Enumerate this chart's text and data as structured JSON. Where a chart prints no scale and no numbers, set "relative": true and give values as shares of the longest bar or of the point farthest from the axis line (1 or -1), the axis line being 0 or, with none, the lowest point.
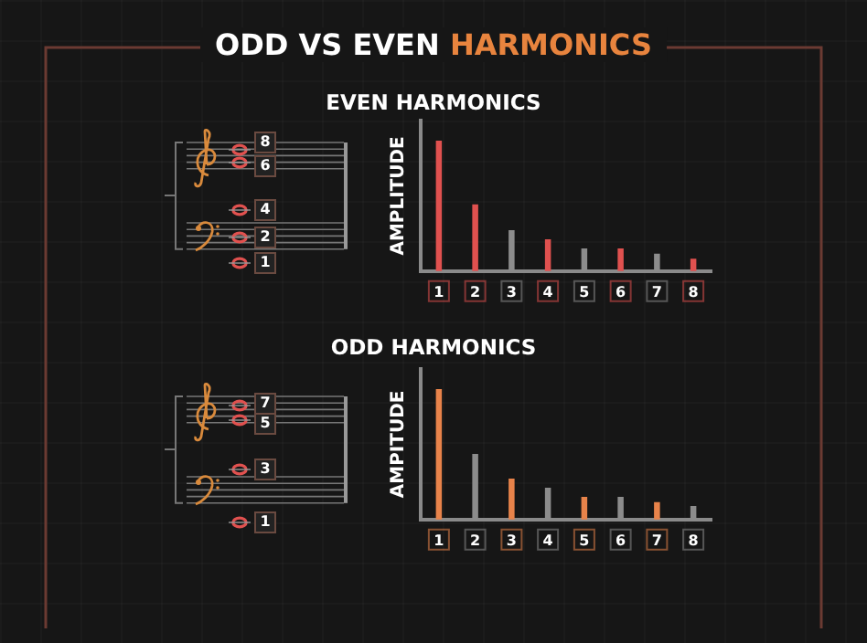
{
  "chart_data": [
    {
      "type": "bar",
      "title": "ODD VS EVEN HARMONICS",
      "subtitle": "EVEN HARMONICS",
      "ylabel": "AMPLITUDE",
      "relative": true,
      "categories": [
        "1",
        "2",
        "3",
        "4",
        "5",
        "6",
        "7",
        "8"
      ],
      "values": [
        1,
        0.51,
        0.31,
        0.24,
        0.17,
        0.17,
        0.13,
        0.09
      ],
      "colors": [
        "#e0514f",
        "#e0514f",
        "#8c8c8c",
        "#e0514f",
        "#8c8c8c",
        "#e0514f",
        "#8c8c8c",
        "#e0514f"
      ],
      "annotations": [
        "8",
        "6",
        "4",
        "2",
        "1"
      ]
    },
    {
      "type": "bar",
      "title": "ODD HARMONICS",
      "ylabel": "AMPITUDE",
      "relative": true,
      "categories": [
        "1",
        "2",
        "3",
        "4",
        "5",
        "6",
        "7",
        "8"
      ],
      "values": [
        1,
        0.5,
        0.31,
        0.24,
        0.17,
        0.17,
        0.13,
        0.1
      ],
      "colors": [
        "#e8834a",
        "#8c8c8c",
        "#e8834a",
        "#8c8c8c",
        "#e8834a",
        "#8c8c8c",
        "#e8834a",
        "#8c8c8c"
      ],
      "annotations": [
        "7",
        "5",
        "3",
        "1"
      ]
    }
  ]
}
